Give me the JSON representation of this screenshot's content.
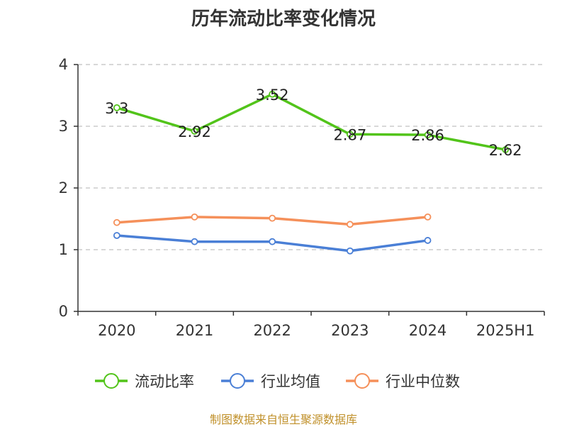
{
  "chart_data": {
    "type": "line",
    "title": "历年流动比率变化情况",
    "categories": [
      "2020",
      "2021",
      "2022",
      "2023",
      "2024",
      "2025H1"
    ],
    "yticks": [
      0,
      1,
      2,
      3,
      4
    ],
    "ylim": [
      0,
      4
    ],
    "grid": "horizontal dashed",
    "legend_position": "bottom-center",
    "series": [
      {
        "name": "流动比率",
        "color": "#52c41a",
        "values": [
          3.3,
          2.92,
          3.52,
          2.87,
          2.86,
          2.62
        ],
        "labels": [
          "3.3",
          "2.92",
          "3.52",
          "2.87",
          "2.86",
          "2.62"
        ]
      },
      {
        "name": "行业均值",
        "color": "#4a7fd6",
        "values": [
          1.23,
          1.13,
          1.13,
          0.98,
          1.15,
          null
        ]
      },
      {
        "name": "行业中位数",
        "color": "#f5905a",
        "values": [
          1.44,
          1.53,
          1.51,
          1.41,
          1.53,
          null
        ]
      }
    ]
  },
  "source_note": "制图数据来自恒生聚源数据库"
}
